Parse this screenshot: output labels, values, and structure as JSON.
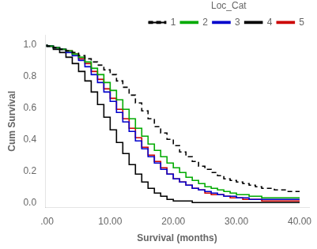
{
  "chart_data": {
    "type": "line",
    "xlabel": "Survival (months)",
    "ylabel": "Cum Survival",
    "xlim": [
      -0.3,
      41.5
    ],
    "ylim": [
      -0.03,
      1.06
    ],
    "xticks": [
      {
        "value": 0.0,
        "label": ".00"
      },
      {
        "value": 10.0,
        "label": "10.00"
      },
      {
        "value": 20.0,
        "label": "20.00"
      },
      {
        "value": 30.0,
        "label": "30.00"
      },
      {
        "value": 40.0,
        "label": "40.00"
      }
    ],
    "yticks": [
      {
        "value": 0.0,
        "label": "0.0"
      },
      0.2,
      0.4,
      0.6,
      0.8,
      {
        "value": 1.0,
        "label": "1.0"
      }
    ],
    "grid": false,
    "legend": "upper right",
    "legend_title": "Loc_Cat",
    "x": [
      0,
      1,
      2,
      3,
      4,
      5,
      6,
      7,
      8,
      9,
      10,
      11,
      12,
      13,
      14,
      15,
      16,
      17,
      18,
      19,
      20,
      21,
      22,
      23,
      24,
      25,
      26,
      27,
      28,
      29,
      30,
      31,
      32,
      33,
      34,
      35,
      36,
      37,
      38,
      39,
      40
    ],
    "series": [
      {
        "name": "1",
        "color": "#000000",
        "line_style": "dashed",
        "values": [
          1.0,
          0.99,
          0.98,
          0.97,
          0.96,
          0.95,
          0.93,
          0.91,
          0.89,
          0.87,
          0.84,
          0.81,
          0.77,
          0.73,
          0.68,
          0.63,
          0.58,
          0.53,
          0.48,
          0.44,
          0.4,
          0.36,
          0.32,
          0.29,
          0.26,
          0.23,
          0.21,
          0.19,
          0.17,
          0.15,
          0.14,
          0.13,
          0.12,
          0.11,
          0.1,
          0.09,
          0.09,
          0.08,
          0.08,
          0.07,
          0.07
        ]
      },
      {
        "name": "2",
        "color": "#00aa00",
        "line_style": "solid",
        "values": [
          1.0,
          0.99,
          0.98,
          0.97,
          0.96,
          0.94,
          0.92,
          0.89,
          0.85,
          0.81,
          0.76,
          0.71,
          0.65,
          0.59,
          0.53,
          0.47,
          0.42,
          0.37,
          0.33,
          0.29,
          0.25,
          0.22,
          0.19,
          0.16,
          0.14,
          0.12,
          0.1,
          0.09,
          0.08,
          0.07,
          0.06,
          0.05,
          0.05,
          0.04,
          0.04,
          0.03,
          0.03,
          0.03,
          0.03,
          0.03,
          0.03
        ]
      },
      {
        "name": "3",
        "color": "#0000cc",
        "line_style": "solid",
        "values": [
          1.0,
          0.99,
          0.98,
          0.97,
          0.95,
          0.93,
          0.9,
          0.86,
          0.81,
          0.76,
          0.7,
          0.64,
          0.57,
          0.51,
          0.45,
          0.39,
          0.34,
          0.29,
          0.25,
          0.21,
          0.18,
          0.15,
          0.13,
          0.11,
          0.09,
          0.08,
          0.07,
          0.06,
          0.05,
          0.04,
          0.04,
          0.03,
          0.03,
          0.02,
          0.02,
          0.02,
          0.02,
          0.02,
          0.02,
          0.02,
          0.02
        ]
      },
      {
        "name": "4",
        "color": "#000000",
        "line_style": "solid",
        "values": [
          1.0,
          0.99,
          0.97,
          0.95,
          0.92,
          0.88,
          0.83,
          0.77,
          0.7,
          0.62,
          0.54,
          0.46,
          0.38,
          0.31,
          0.24,
          0.18,
          0.13,
          0.09,
          0.06,
          0.04,
          0.02,
          0.01,
          0.01,
          0.01,
          0.0,
          0.0,
          0.0,
          0.0,
          0.0,
          0.0,
          0.0,
          0.0,
          0.0,
          0.0,
          0.0,
          0.0,
          0.0,
          0.0,
          0.0,
          0.0,
          0.0
        ]
      },
      {
        "name": "5",
        "color": "#cc0000",
        "line_style": "solid",
        "values": [
          1.0,
          0.99,
          0.98,
          0.97,
          0.96,
          0.94,
          0.91,
          0.88,
          0.83,
          0.78,
          0.72,
          0.66,
          0.59,
          0.53,
          0.47,
          0.41,
          0.35,
          0.3,
          0.26,
          0.22,
          0.18,
          0.15,
          0.13,
          0.11,
          0.09,
          0.08,
          0.06,
          0.05,
          0.05,
          0.04,
          0.03,
          0.03,
          0.02,
          0.02,
          0.02,
          0.01,
          0.01,
          0.01,
          0.01,
          0.01,
          0.01
        ]
      }
    ]
  }
}
